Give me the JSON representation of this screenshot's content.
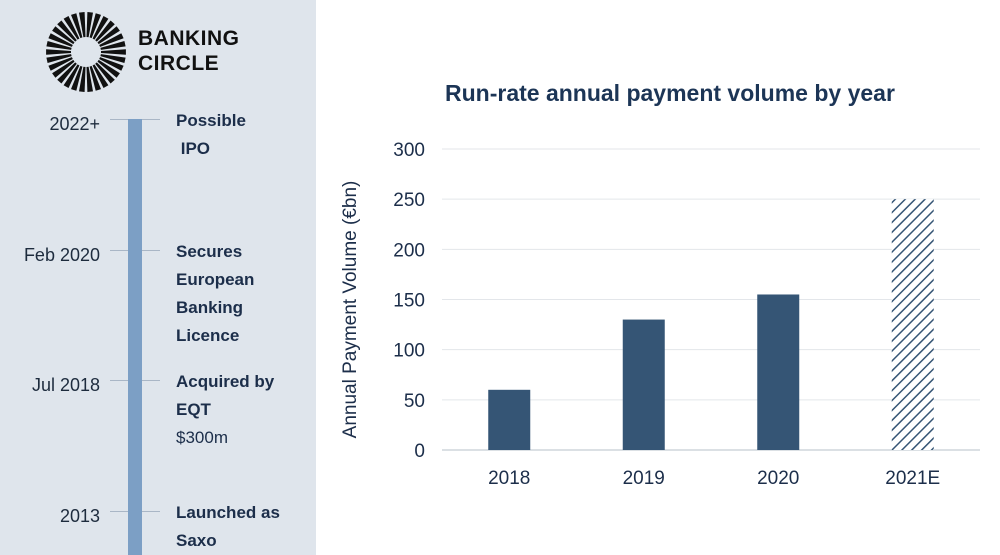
{
  "brand": {
    "name_line1": "BANKING",
    "name_line2": "CIRCLE",
    "logo_icon": "sunburst-logo-icon"
  },
  "timeline": [
    {
      "date": "2022+",
      "event_lines": [
        "Possible",
        " IPO"
      ],
      "detail": ""
    },
    {
      "date": "Feb 2020",
      "event_lines": [
        "Secures",
        "European",
        "Banking",
        "Licence"
      ],
      "detail": ""
    },
    {
      "date": "Jul 2018",
      "event_lines": [
        "Acquired by",
        "EQT"
      ],
      "detail": "$300m"
    },
    {
      "date": "2013",
      "event_lines": [
        "Launched as",
        "Saxo"
      ],
      "detail": ""
    }
  ],
  "colors": {
    "bar": "#355575",
    "timeline": "#7c9fc5",
    "sidebar_bg": "#dfe5ec",
    "title": "#1c3556"
  },
  "chart_data": {
    "type": "bar",
    "title": "Run-rate annual payment volume by year",
    "xlabel": "",
    "ylabel": "Annual Payment Volume (€bn)",
    "categories": [
      "2018",
      "2019",
      "2020",
      "2021E"
    ],
    "values": [
      60,
      130,
      155,
      250
    ],
    "estimated": [
      false,
      false,
      false,
      true
    ],
    "ylim": [
      0,
      300
    ],
    "yticks": [
      0,
      50,
      100,
      150,
      200,
      250,
      300
    ],
    "grid": true,
    "legend": "none"
  }
}
